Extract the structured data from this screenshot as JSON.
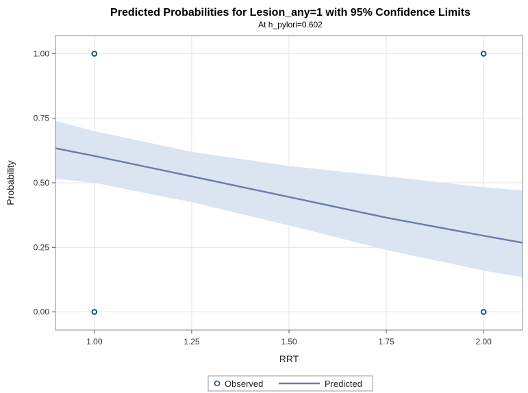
{
  "chart_data": {
    "type": "line",
    "title": "Predicted Probabilities for Lesion_any=1 with 95% Confidence Limits",
    "subtitle": "At h_pylori=0.602",
    "xlabel": "RRT",
    "ylabel": "Probability",
    "xlim": [
      0.9,
      2.1
    ],
    "ylim": [
      -0.07,
      1.07
    ],
    "x_ticks": [
      1.0,
      1.25,
      1.5,
      1.75,
      2.0
    ],
    "x_tick_labels": [
      "1.00",
      "1.25",
      "1.50",
      "1.75",
      "2.00"
    ],
    "y_ticks": [
      0.0,
      0.25,
      0.5,
      0.75,
      1.0
    ],
    "y_tick_labels": [
      "0.00",
      "0.25",
      "0.50",
      "0.75",
      "1.00"
    ],
    "grid": true,
    "series": [
      {
        "name": "Predicted",
        "kind": "line",
        "x": [
          0.9,
          1.0,
          1.25,
          1.5,
          1.75,
          2.0,
          2.1
        ],
        "y": [
          0.634,
          0.604,
          0.525,
          0.445,
          0.365,
          0.295,
          0.268
        ],
        "color": "#6b7fa8"
      },
      {
        "name": "95% Confidence Limits",
        "kind": "band",
        "x": [
          0.9,
          1.0,
          1.25,
          1.5,
          1.75,
          2.0,
          2.1
        ],
        "lower": [
          0.516,
          0.5,
          0.425,
          0.335,
          0.24,
          0.16,
          0.135
        ],
        "upper": [
          0.74,
          0.7,
          0.62,
          0.565,
          0.525,
          0.483,
          0.47
        ],
        "color": "#dbe4f1"
      },
      {
        "name": "Observed",
        "kind": "scatter",
        "x": [
          1.0,
          1.0,
          2.0,
          2.0
        ],
        "y": [
          1.0,
          0.0,
          1.0,
          0.0
        ],
        "color": "#1f4e8c"
      }
    ],
    "legend": {
      "position": "bottom-center",
      "entries": [
        "Observed",
        "Predicted"
      ]
    }
  }
}
